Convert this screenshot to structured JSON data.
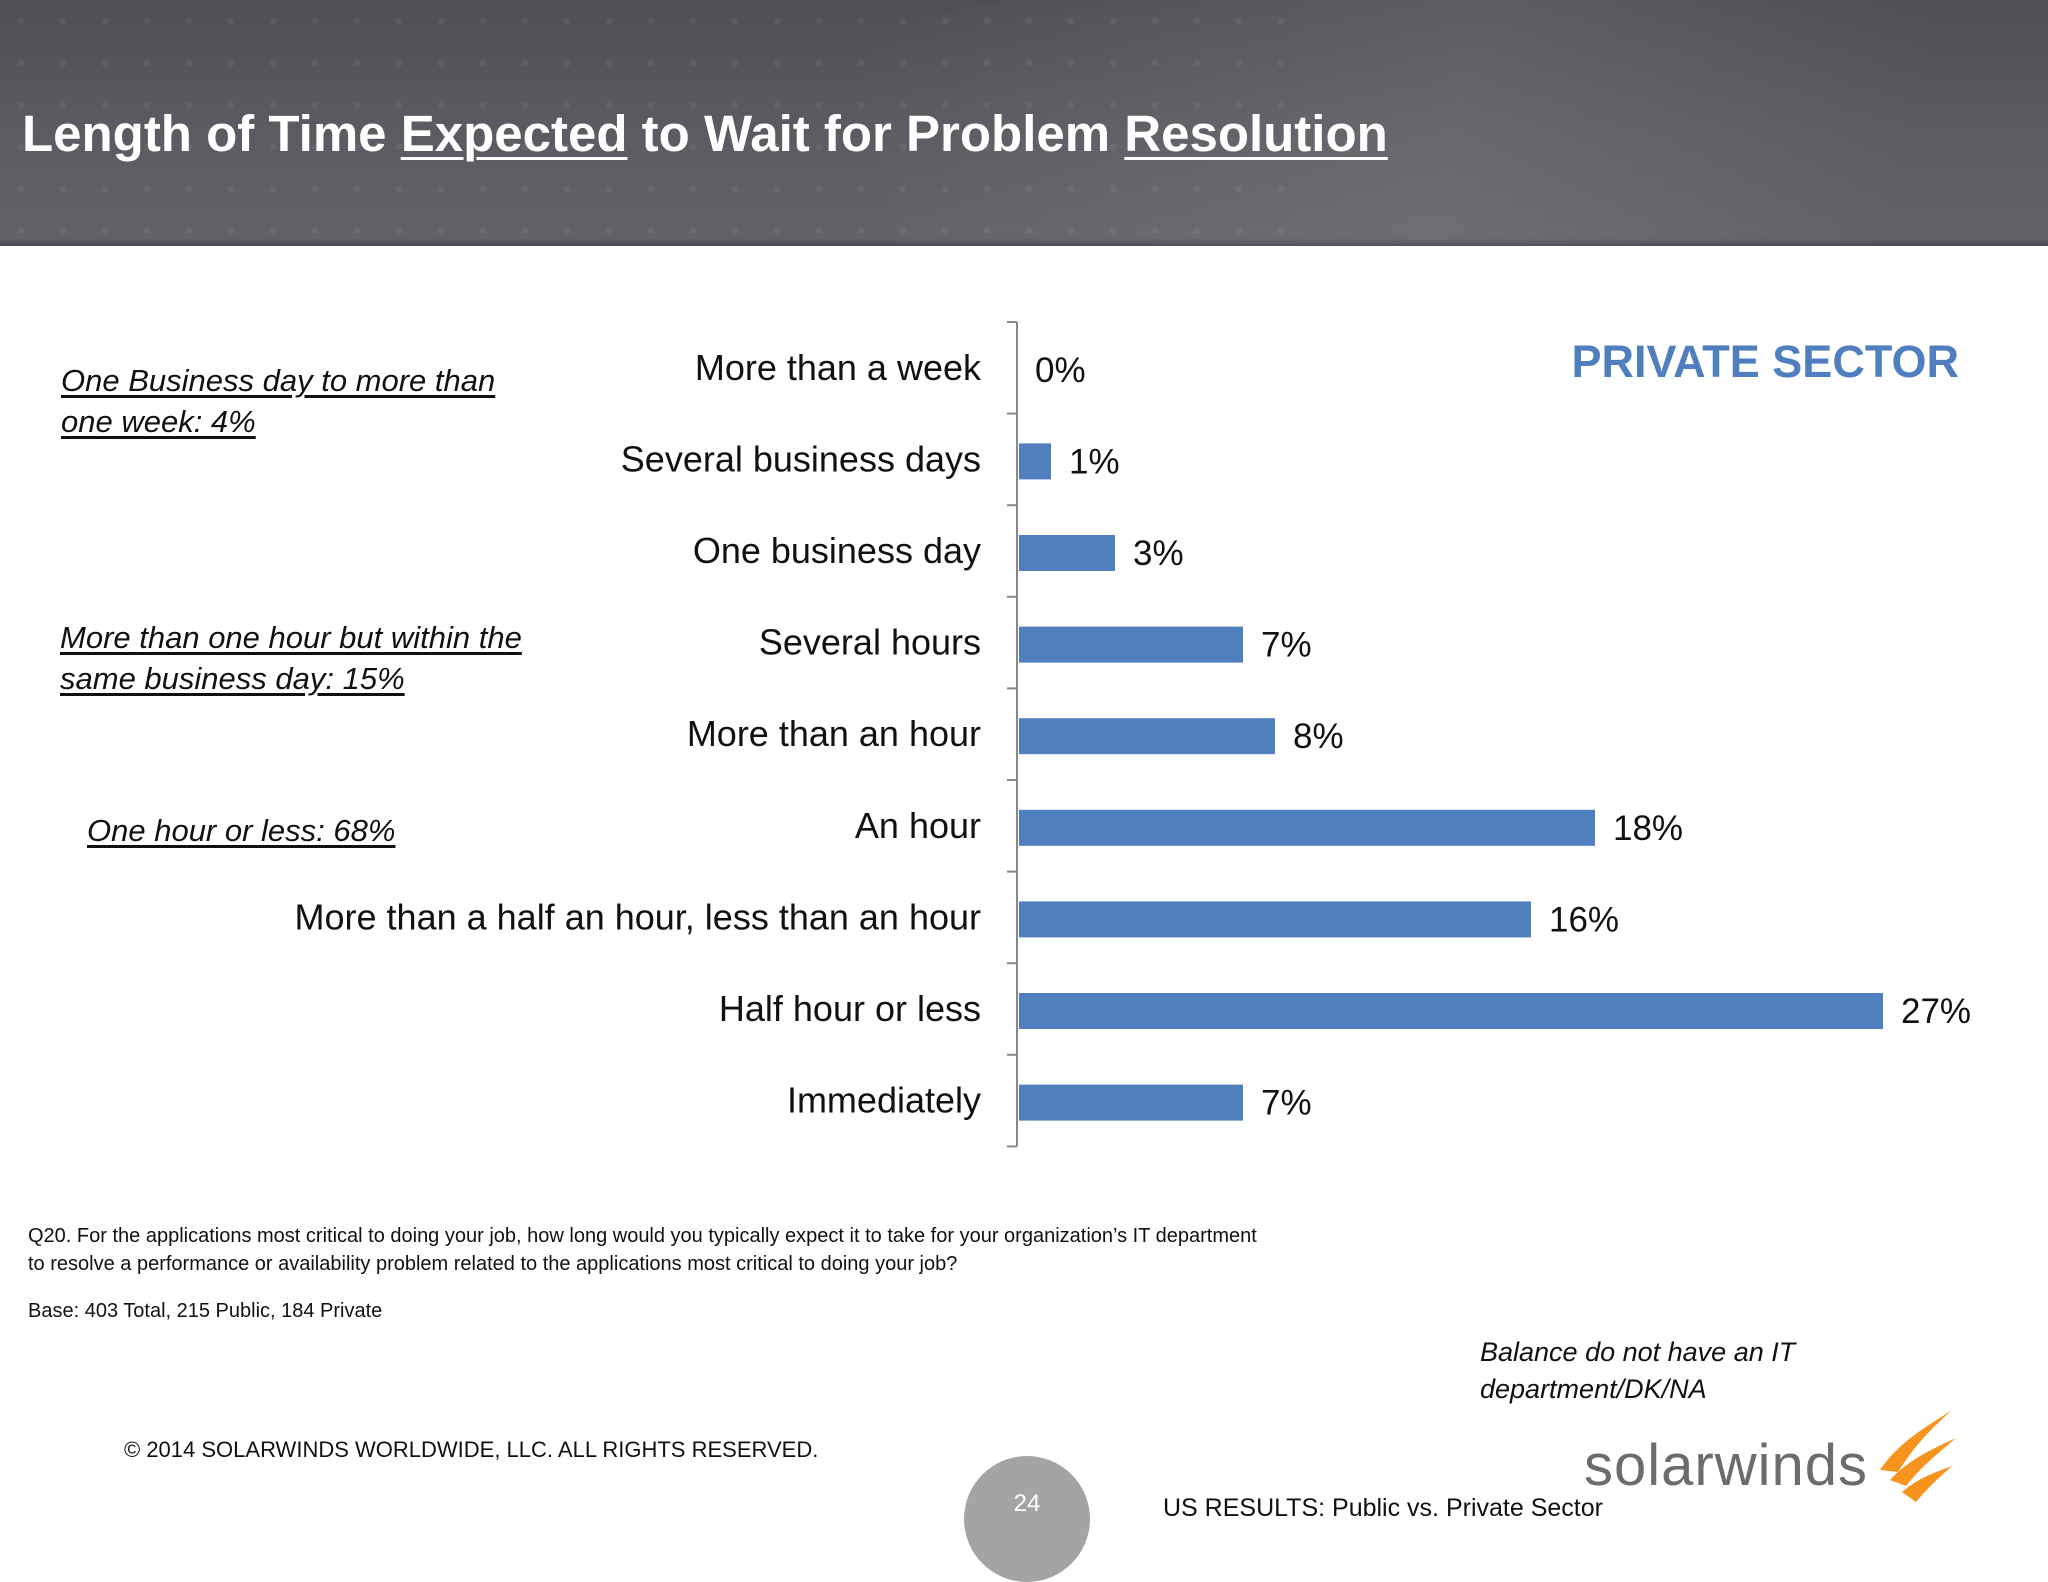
{
  "header": {
    "title_parts": [
      {
        "text": "Length of Time ",
        "underline": false
      },
      {
        "text": "Expected",
        "underline": true
      },
      {
        "text": " to Wait for Problem ",
        "underline": false
      },
      {
        "text": "Resolution",
        "underline": true
      }
    ],
    "t0": "Length of Time ",
    "t1": "Expected",
    "t2": " to Wait for Problem ",
    "t3": "Resolution"
  },
  "sector_label": "PRIVATE SECTOR",
  "side_notes": [
    "One Business day to more than one week:  4%",
    "More than one hour but within the same business day:  15%",
    "One hour or less:  68%"
  ],
  "chart_data": {
    "type": "bar",
    "orientation": "horizontal",
    "categories": [
      "More than a week",
      "Several business days",
      "One business day",
      "Several hours",
      "More than an hour",
      "An hour",
      "More than a half an hour, less than an hour",
      "Half hour or less",
      "Immediately"
    ],
    "values": [
      0,
      1,
      3,
      7,
      8,
      18,
      16,
      27,
      7
    ],
    "value_labels": [
      "0%",
      "1%",
      "3%",
      "7%",
      "8%",
      "18%",
      "16%",
      "27%",
      "7%"
    ],
    "bar_color": "#4f7fbf",
    "xlim": [
      0,
      27
    ],
    "grid": false,
    "legend": "none"
  },
  "footer": {
    "question": "Q20. For the applications most critical to doing your job, how long would you typically expect it to take for your organization’s IT department to resolve a performance or availability problem related to the applications most critical to doing your job?",
    "base": "Base:  403  Total, 215 Public, 184 Private",
    "balance_note": "Balance do not have an IT department/DK/NA",
    "copyright": "© 2014 SOLARWINDS WORLDWIDE, LLC.  ALL RIGHTS RESERVED.",
    "page_number": "24",
    "us_results": "US RESULTS:  Public vs. Private Sector",
    "logo_text": "solarwinds"
  }
}
